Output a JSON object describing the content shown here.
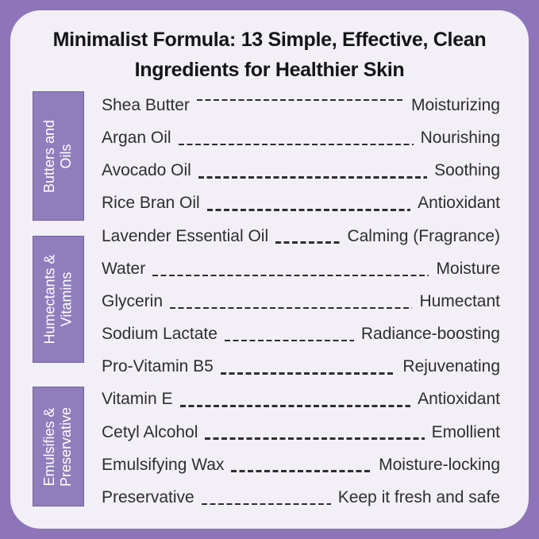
{
  "header": {
    "title_line1": "Minimalist Formula: 13 Simple, Effective, Clean",
    "title_line2": "Ingredients for Healthier Skin"
  },
  "groups": [
    {
      "label": "Butters and Oils",
      "line1": "Butters and",
      "line2": "Oils"
    },
    {
      "label": "Humectants & Vitamins",
      "line1": "Humectants &",
      "line2": "Vitamins"
    },
    {
      "label": "Emulsifies & Preservative",
      "line1": "Emulsifies &",
      "line2": "Preservative"
    }
  ],
  "rows": [
    {
      "ingredient": "Shea Butter",
      "benefit": "Moisturizing"
    },
    {
      "ingredient": "Argan Oil",
      "benefit": "Nourishing"
    },
    {
      "ingredient": "Avocado Oil",
      "benefit": "Soothing"
    },
    {
      "ingredient": "Rice Bran Oil",
      "benefit": "Antioxidant"
    },
    {
      "ingredient": "Lavender Essential Oil",
      "benefit": "Calming (Fragrance)"
    },
    {
      "ingredient": "Water",
      "benefit": "Moisture"
    },
    {
      "ingredient": "Glycerin",
      "benefit": "Humectant"
    },
    {
      "ingredient": "Sodium Lactate",
      "benefit": "Radiance-boosting"
    },
    {
      "ingredient": "Pro-Vitamin B5",
      "benefit": "Rejuvenating"
    },
    {
      "ingredient": "Vitamin E",
      "benefit": "Antioxidant"
    },
    {
      "ingredient": "Cetyl Alcohol",
      "benefit": "Emollient"
    },
    {
      "ingredient": "Emulsifying Wax",
      "benefit": "Moisture-locking"
    },
    {
      "ingredient": "Preservative",
      "benefit": "Keep it fresh and safe"
    }
  ],
  "colors": {
    "background": "#8e74b9",
    "card": "#f2eff6",
    "group_box": "#8f7dbc",
    "group_box_border": "#73629b",
    "group_text": "#ffffff",
    "title_text": "#151515",
    "row_text": "#2e2e2e",
    "dash": "#2e2e2e"
  }
}
